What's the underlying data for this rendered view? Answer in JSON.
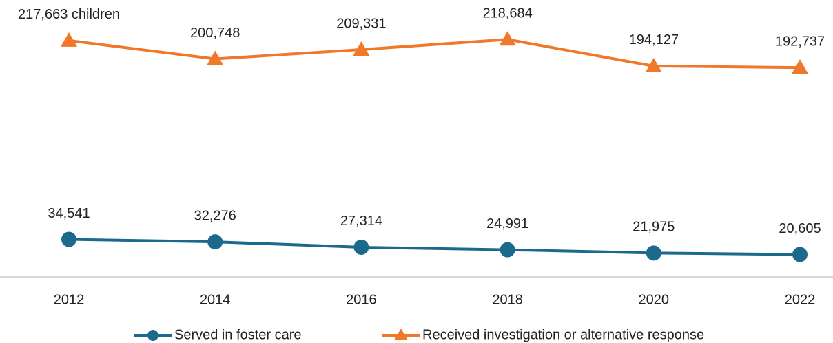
{
  "chart_data": {
    "type": "line",
    "categories": [
      "2012",
      "2014",
      "2016",
      "2018",
      "2020",
      "2022"
    ],
    "ylim": [
      0,
      255000
    ],
    "series": [
      {
        "name": "Served in foster care",
        "color": "#1b6a8e",
        "marker": "circle",
        "values": [
          34541,
          32276,
          27314,
          24991,
          21975,
          20605
        ],
        "value_labels": [
          "34,541",
          "32,276",
          "27,314",
          "24,991",
          "21,975",
          "20,605"
        ]
      },
      {
        "name": "Received investigation or alternative response",
        "color": "#f0782a",
        "marker": "triangle",
        "values": [
          217663,
          200748,
          209331,
          218684,
          194127,
          192737
        ],
        "value_labels": [
          "217,663 children",
          "200,748",
          "209,331",
          "218,684",
          "194,127",
          "192,737"
        ]
      }
    ],
    "legend": "bottom"
  }
}
